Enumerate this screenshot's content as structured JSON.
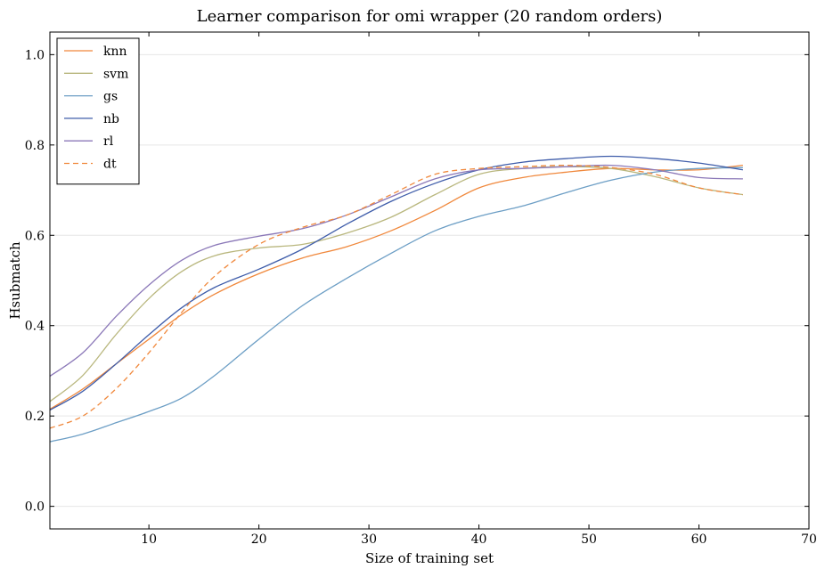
{
  "chart_data": {
    "type": "line",
    "title": "Learner comparison for omi wrapper (20 random orders)",
    "xlabel": "Size of training set",
    "ylabel": "Hsubmatch",
    "xlim": [
      1,
      70
    ],
    "ylim": [
      -0.05,
      1.05
    ],
    "xticks": [
      10,
      20,
      30,
      40,
      50,
      60,
      70
    ],
    "yticks": [
      0.0,
      0.2,
      0.4,
      0.6,
      0.8,
      1.0
    ],
    "ytick_labels": [
      "0.0",
      "0.2",
      "0.4",
      "0.6",
      "0.8",
      "1.0"
    ],
    "grid": "horizontal",
    "legend_position": "top-left",
    "x": [
      1,
      4,
      7,
      10,
      13,
      16,
      20,
      24,
      28,
      32,
      36,
      40,
      44,
      48,
      52,
      56,
      60,
      64
    ],
    "series": [
      {
        "name": "knn",
        "color": "#f0883c",
        "dash": "solid",
        "values": [
          0.215,
          0.26,
          0.315,
          0.37,
          0.425,
          0.47,
          0.515,
          0.55,
          0.575,
          0.61,
          0.655,
          0.705,
          0.728,
          0.74,
          0.748,
          0.745,
          0.745,
          0.755
        ]
      },
      {
        "name": "svm",
        "color": "#b9b77e",
        "dash": "solid",
        "values": [
          0.232,
          0.29,
          0.38,
          0.46,
          0.52,
          0.555,
          0.572,
          0.58,
          0.605,
          0.64,
          0.69,
          0.735,
          0.748,
          0.752,
          0.748,
          0.73,
          0.705,
          0.69
        ]
      },
      {
        "name": "gs",
        "color": "#6c9ec5",
        "dash": "solid",
        "values": [
          0.143,
          0.16,
          0.185,
          0.21,
          0.24,
          0.29,
          0.37,
          0.445,
          0.505,
          0.56,
          0.61,
          0.642,
          0.665,
          0.695,
          0.722,
          0.74,
          0.748,
          0.75
        ]
      },
      {
        "name": "nb",
        "color": "#3f5daa",
        "dash": "solid",
        "values": [
          0.213,
          0.255,
          0.315,
          0.38,
          0.44,
          0.485,
          0.525,
          0.57,
          0.625,
          0.675,
          0.715,
          0.745,
          0.762,
          0.77,
          0.775,
          0.77,
          0.76,
          0.745
        ]
      },
      {
        "name": "rl",
        "color": "#8b78b8",
        "dash": "solid",
        "values": [
          0.288,
          0.34,
          0.42,
          0.49,
          0.545,
          0.578,
          0.598,
          0.615,
          0.645,
          0.685,
          0.725,
          0.745,
          0.748,
          0.752,
          0.755,
          0.745,
          0.728,
          0.725
        ]
      },
      {
        "name": "dt",
        "color": "#f0883c",
        "dash": "dashed",
        "values": [
          0.173,
          0.2,
          0.26,
          0.34,
          0.43,
          0.51,
          0.58,
          0.618,
          0.645,
          0.69,
          0.735,
          0.748,
          0.752,
          0.755,
          0.75,
          0.735,
          0.705,
          0.69
        ]
      }
    ]
  }
}
